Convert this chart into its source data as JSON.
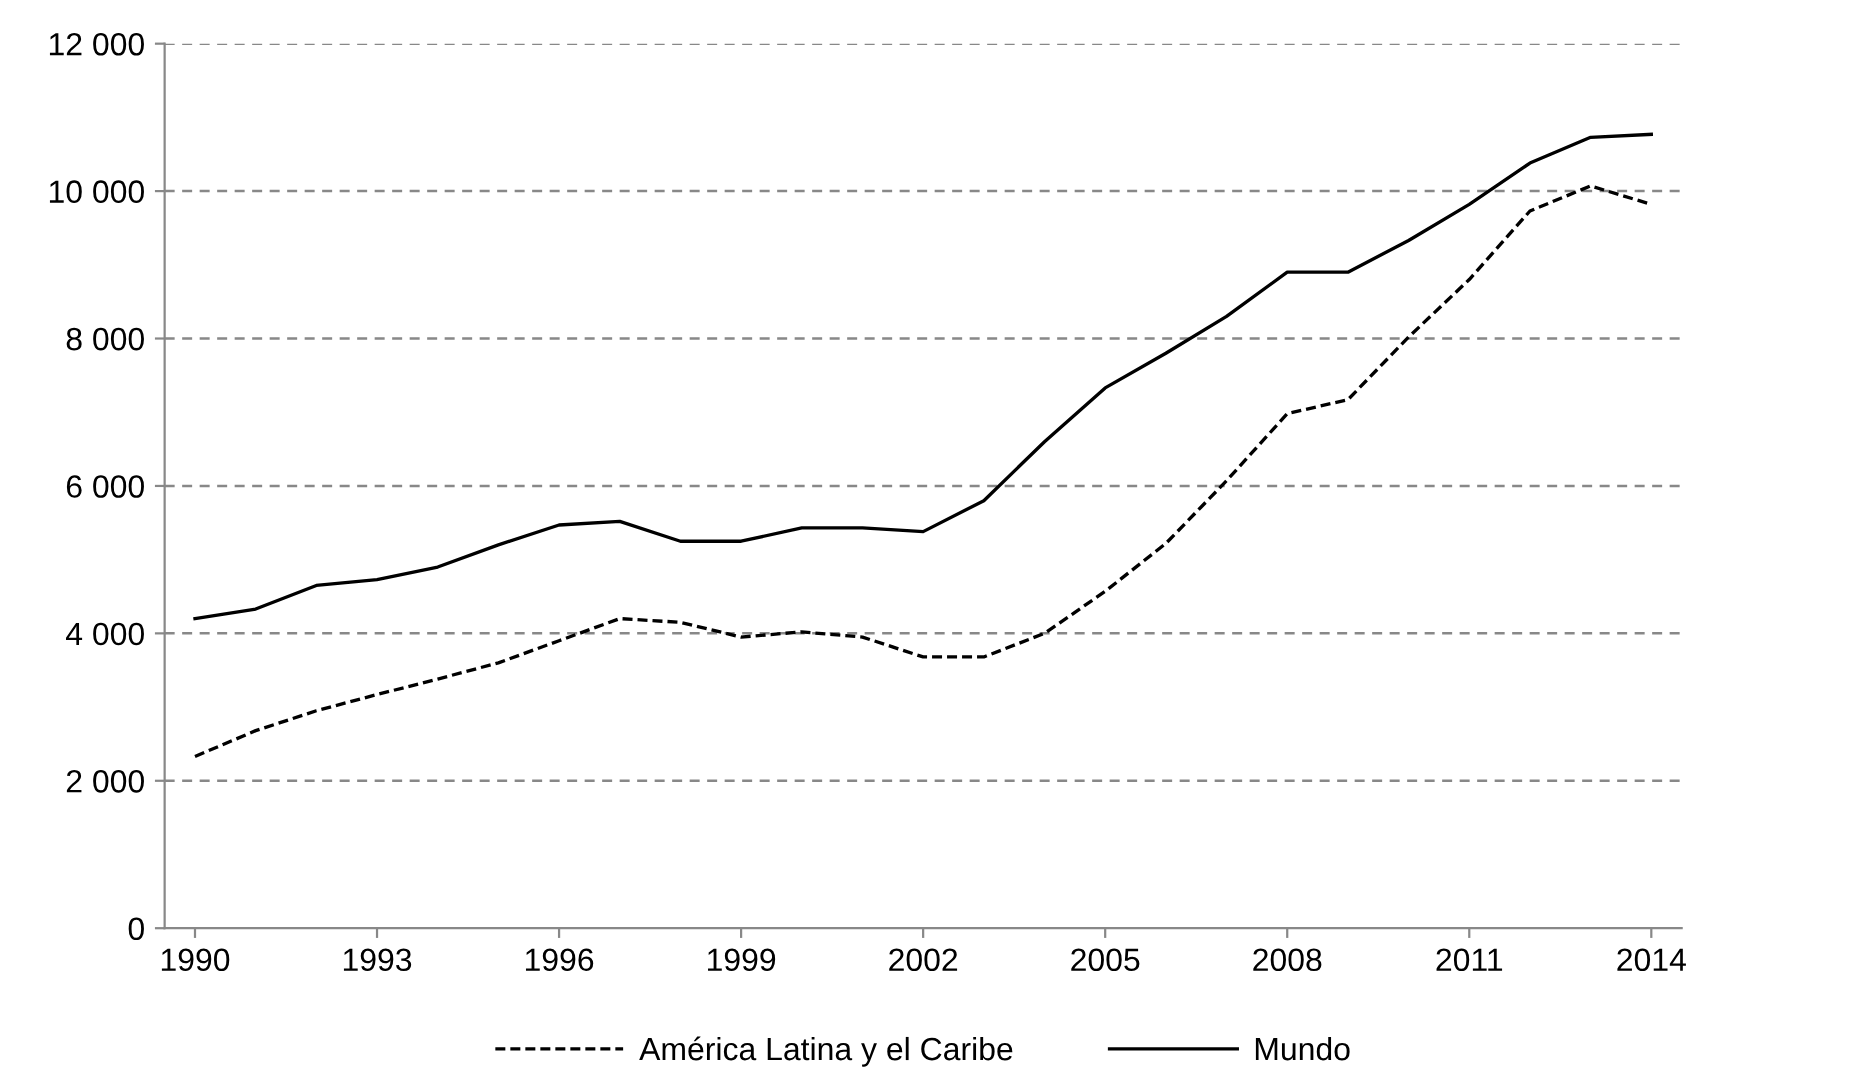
{
  "chart_data": {
    "type": "line",
    "x": [
      1990,
      1991,
      1992,
      1993,
      1994,
      1995,
      1996,
      1997,
      1998,
      1999,
      2000,
      2001,
      2002,
      2003,
      2004,
      2005,
      2006,
      2007,
      2008,
      2009,
      2010,
      2011,
      2012,
      2013,
      2014
    ],
    "series": [
      {
        "name": "América Latina y el Caribe",
        "color": "#000000",
        "line_style": "dashed",
        "values": [
          2330,
          2680,
          2950,
          3170,
          3380,
          3600,
          3900,
          4200,
          4150,
          3950,
          4020,
          3950,
          3680,
          3680,
          4000,
          4570,
          5220,
          6070,
          6980,
          7170,
          8020,
          8800,
          9730,
          10070,
          9820
        ]
      },
      {
        "name": "Mundo",
        "color": "#000000",
        "line_style": "solid",
        "values": [
          4200,
          4330,
          4650,
          4730,
          4900,
          5200,
          5470,
          5520,
          5250,
          5250,
          5430,
          5430,
          5380,
          5800,
          6600,
          7330,
          7800,
          8300,
          8900,
          8900,
          9330,
          9820,
          10380,
          10730,
          10770
        ]
      }
    ],
    "xlim": [
      1989.5,
      2014.5
    ],
    "xticks": [
      1990,
      1993,
      1996,
      1999,
      2002,
      2005,
      2008,
      2011,
      2014
    ],
    "ylim": [
      0,
      12000
    ],
    "yticks": [
      {
        "value": 0,
        "label": "0"
      },
      {
        "value": 2000,
        "label": "2 000"
      },
      {
        "value": 4000,
        "label": "4 000"
      },
      {
        "value": 6000,
        "label": "6 000"
      },
      {
        "value": 8000,
        "label": "8 000"
      },
      {
        "value": 10000,
        "label": "10 000"
      },
      {
        "value": 12000,
        "label": "12 000"
      }
    ],
    "grid": "y",
    "legend": "bottom",
    "marker": "none"
  }
}
